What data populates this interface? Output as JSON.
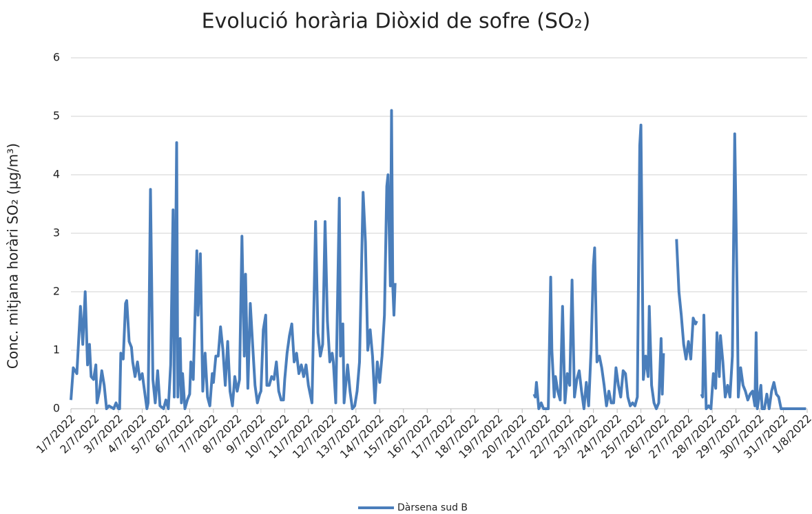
{
  "chart_data": {
    "type": "line",
    "title": "Evolució horària Diòxid de sofre (SO₂)",
    "y_label": "Conc. mitjana horàri SO₂ (µg/m³)",
    "ylim": [
      0,
      6
    ],
    "yticks": [
      0,
      1,
      2,
      3,
      4,
      5,
      6
    ],
    "grid": true,
    "xlim": [
      0,
      31
    ],
    "xticks": [
      {
        "value": 0,
        "label": "1/7/2022"
      },
      {
        "value": 1,
        "label": "2/7/2022"
      },
      {
        "value": 2,
        "label": "3/7/2022"
      },
      {
        "value": 3,
        "label": "4/7/2022"
      },
      {
        "value": 4,
        "label": "5/7/2022"
      },
      {
        "value": 5,
        "label": "6/7/2022"
      },
      {
        "value": 6,
        "label": "7/7/2022"
      },
      {
        "value": 7,
        "label": "8/7/2022"
      },
      {
        "value": 8,
        "label": "9/7/2022"
      },
      {
        "value": 9,
        "label": "10/7/2022"
      },
      {
        "value": 10,
        "label": "11/7/2022"
      },
      {
        "value": 11,
        "label": "12/7/2022"
      },
      {
        "value": 12,
        "label": "13/7/2022"
      },
      {
        "value": 13,
        "label": "14/7/2022"
      },
      {
        "value": 14,
        "label": "15/7/2022"
      },
      {
        "value": 15,
        "label": "16/7/2022"
      },
      {
        "value": 16,
        "label": "17/7/2022"
      },
      {
        "value": 17,
        "label": "18/7/2022"
      },
      {
        "value": 18,
        "label": "19/7/2022"
      },
      {
        "value": 19,
        "label": "20/7/2022"
      },
      {
        "value": 20,
        "label": "21/7/2022"
      },
      {
        "value": 21,
        "label": "22/7/2022"
      },
      {
        "value": 22,
        "label": "23/7/2022"
      },
      {
        "value": 23,
        "label": "24/7/2022"
      },
      {
        "value": 24,
        "label": "25/7/2022"
      },
      {
        "value": 25,
        "label": "26/7/2022"
      },
      {
        "value": 26,
        "label": "27/7/2022"
      },
      {
        "value": 27,
        "label": "28/7/2022"
      },
      {
        "value": 28,
        "label": "29/7/2022"
      },
      {
        "value": 29,
        "label": "30/7/2022"
      },
      {
        "value": 30,
        "label": "31/7/2022"
      },
      {
        "value": 31,
        "label": "1/8/2022"
      }
    ],
    "x": [
      0,
      0.1,
      0.25,
      0.4,
      0.5,
      0.6,
      0.7,
      0.78,
      0.85,
      0.95,
      1.05,
      1.1,
      1.2,
      1.3,
      1.4,
      1.5,
      1.6,
      1.8,
      1.9,
      2,
      2.05,
      2.1,
      2.2,
      2.3,
      2.35,
      2.45,
      2.55,
      2.6,
      2.7,
      2.8,
      2.9,
      3,
      3.1,
      3.2,
      3.25,
      3.35,
      3.45,
      3.55,
      3.65,
      3.75,
      3.9,
      4,
      4.1,
      4.2,
      4.3,
      4.35,
      4.45,
      4.5,
      4.6,
      4.65,
      4.7,
      4.8,
      4.9,
      5,
      5.05,
      5.15,
      5.3,
      5.35,
      5.45,
      5.55,
      5.65,
      5.75,
      5.85,
      5.95,
      6,
      6.1,
      6.2,
      6.3,
      6.4,
      6.5,
      6.6,
      6.7,
      6.8,
      6.9,
      7,
      7.1,
      7.2,
      7.3,
      7.35,
      7.45,
      7.55,
      7.65,
      7.75,
      7.85,
      7.95,
      8,
      8.1,
      8.2,
      8.25,
      8.35,
      8.45,
      8.55,
      8.65,
      8.75,
      8.85,
      8.95,
      9,
      9.1,
      9.2,
      9.3,
      9.4,
      9.5,
      9.6,
      9.7,
      9.8,
      9.9,
      10,
      10.15,
      10.3,
      10.4,
      10.5,
      10.6,
      10.7,
      10.8,
      10.9,
      11,
      11.05,
      11.15,
      11.3,
      11.35,
      11.45,
      11.5,
      11.65,
      11.75,
      11.85,
      11.95,
      12.05,
      12.15,
      12.3,
      12.4,
      12.5,
      12.6,
      12.7,
      12.8,
      12.9,
      13,
      13.1,
      13.2,
      13.3,
      13.35,
      13.45,
      13.5,
      13.55,
      13.6,
      13.65,
      14,
      19.5,
      19.55,
      19.6,
      19.7,
      19.8,
      19.9,
      20,
      20.1,
      20.2,
      20.25,
      20.35,
      20.4,
      20.5,
      20.6,
      20.7,
      20.8,
      20.9,
      21,
      21.1,
      21.2,
      21.3,
      21.4,
      21.5,
      21.6,
      21.7,
      21.8,
      21.9,
      22,
      22.05,
      22.15,
      22.25,
      22.35,
      22.45,
      22.55,
      22.65,
      22.75,
      22.85,
      22.95,
      23.05,
      23.15,
      23.25,
      23.35,
      23.45,
      23.55,
      23.65,
      23.75,
      23.85,
      23.95,
      24,
      24.1,
      24.2,
      24.3,
      24.35,
      24.45,
      24.55,
      24.65,
      24.75,
      24.85,
      24.9,
      24.95,
      25.2,
      25.5,
      25.6,
      25.7,
      25.8,
      25.9,
      26,
      26.1,
      26.2,
      26.3,
      26.35,
      26.4,
      26.55,
      26.6,
      26.65,
      26.75,
      26.85,
      26.95,
      27.05,
      27.15,
      27.2,
      27.3,
      27.35,
      27.45,
      27.55,
      27.65,
      27.75,
      27.85,
      27.95,
      28.05,
      28.1,
      28.2,
      28.3,
      28.4,
      28.5,
      28.6,
      28.7,
      28.8,
      28.85,
      28.9,
      29.05,
      29.1,
      29.2,
      29.3,
      29.4,
      29.5,
      29.6,
      29.7,
      29.8,
      29.9,
      30,
      30.2,
      30.4,
      30.6,
      30.95
    ],
    "series": [
      {
        "name": "Dàrsena sud B",
        "color": "#4a7ebb",
        "values": [
          0.15,
          0.7,
          0.6,
          1.75,
          1.1,
          2.0,
          0.75,
          1.1,
          0.55,
          0.5,
          0.75,
          0.1,
          0.3,
          0.65,
          0.4,
          0.0,
          0.05,
          0.0,
          0.1,
          0.0,
          0.0,
          0.95,
          0.85,
          1.8,
          1.85,
          1.15,
          1.05,
          0.8,
          0.55,
          0.8,
          0.5,
          0.6,
          0.3,
          0.0,
          0.1,
          3.75,
          0.5,
          0.1,
          0.65,
          0.05,
          0.0,
          0.15,
          0.0,
          0.75,
          3.4,
          0.2,
          4.55,
          0.2,
          1.2,
          0.1,
          0.6,
          0.0,
          0.15,
          0.25,
          0.8,
          0.5,
          2.7,
          1.6,
          2.65,
          0.3,
          0.95,
          0.2,
          0.05,
          0.6,
          0.45,
          0.9,
          0.9,
          1.4,
          1.0,
          0.4,
          1.15,
          0.3,
          0.05,
          0.55,
          0.3,
          0.5,
          2.95,
          0.9,
          2.3,
          0.35,
          1.8,
          1.1,
          0.4,
          0.1,
          0.25,
          0.3,
          1.35,
          1.6,
          0.4,
          0.4,
          0.55,
          0.5,
          0.8,
          0.3,
          0.15,
          0.15,
          0.5,
          0.95,
          1.25,
          1.45,
          0.8,
          0.95,
          0.6,
          0.75,
          0.55,
          0.75,
          0.4,
          0.1,
          3.2,
          1.3,
          0.9,
          1.1,
          3.2,
          1.5,
          0.8,
          0.95,
          0.8,
          0.1,
          3.6,
          0.9,
          1.45,
          0.1,
          0.75,
          0.3,
          0.0,
          0.05,
          0.3,
          0.8,
          3.7,
          2.85,
          1.0,
          1.35,
          0.9,
          0.1,
          0.8,
          0.45,
          0.9,
          1.6,
          3.8,
          4.0,
          2.1,
          5.1,
          2.1,
          1.6,
          2.15,
          null,
          0.25,
          0.2,
          0.45,
          0.0,
          0.1,
          0.0,
          0.0,
          0.0,
          2.25,
          1.0,
          0.2,
          0.55,
          0.3,
          0.15,
          1.75,
          0.1,
          0.6,
          0.4,
          2.2,
          0.2,
          0.5,
          0.65,
          0.3,
          0.0,
          0.45,
          0.05,
          1.0,
          2.45,
          2.75,
          0.8,
          0.9,
          0.7,
          0.4,
          0.05,
          0.3,
          0.1,
          0.1,
          0.7,
          0.4,
          0.2,
          0.65,
          0.6,
          0.2,
          0.05,
          0.1,
          0.05,
          0.2,
          4.5,
          4.85,
          0.5,
          0.9,
          0.55,
          1.75,
          0.4,
          0.1,
          0.0,
          0.1,
          1.2,
          0.25,
          0.95,
          null,
          2.9,
          2.0,
          1.6,
          1.1,
          0.85,
          1.15,
          0.85,
          1.55,
          1.45,
          1.5,
          null,
          0.25,
          0.2,
          1.6,
          0.0,
          0.05,
          0.0,
          0.6,
          0.35,
          1.3,
          0.55,
          1.25,
          0.8,
          0.2,
          0.4,
          0.2,
          0.9,
          4.7,
          2.0,
          0.2,
          0.7,
          0.4,
          0.3,
          0.15,
          0.25,
          0.3,
          0.05,
          1.3,
          0.0,
          0.4,
          0.0,
          0.0,
          0.25,
          0.0,
          0.3,
          0.45,
          0.25,
          0.2,
          0.0,
          0.0,
          0.0,
          0.0,
          0.0,
          0.0
        ]
      }
    ]
  }
}
